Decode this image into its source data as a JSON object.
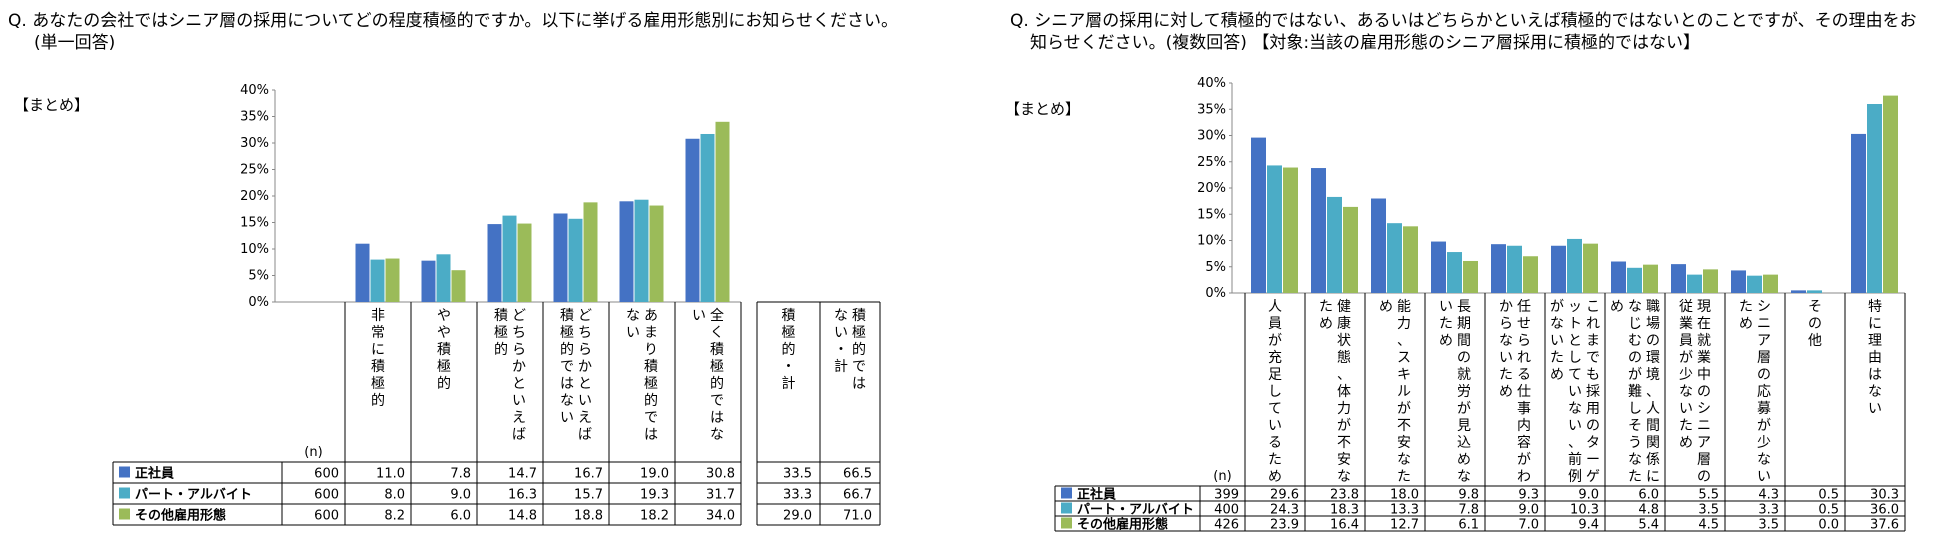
{
  "left": {
    "question_line1": "Q. あなたの会社ではシニア層の採用についてどの程度積極的ですか。以下に挙げる雇用形態別にお知らせください。",
    "question_line2": "(単一回答)",
    "matome": "【まとめ】",
    "n_label": "(n)"
  },
  "right": {
    "question_line1": "Q. シニア層の採用に対して積極的ではない、あるいはどちらかといえば積極的ではないとのことですが、その理由をお",
    "question_line2": "知らせください。(複数回答) 【対象:当該の雇用形態のシニア層採用に積極的ではない】",
    "matome": "【まとめ】",
    "n_label": "(n)"
  },
  "colors": {
    "seishain": "#4472C4",
    "part": "#4BACC6",
    "other": "#9BBB59"
  },
  "chart_data": [
    {
      "type": "bar",
      "ylim": [
        0,
        40
      ],
      "yticks": [
        "0%",
        "5%",
        "10%",
        "15%",
        "20%",
        "25%",
        "30%",
        "35%",
        "40%"
      ],
      "categories": [
        "非常に積極的",
        "やや積極的",
        "どちらかといえば積極的",
        "どちらかといえば積極的ではない",
        "あまり積極的ではない",
        "全く積極的ではない"
      ],
      "series": [
        {
          "name": "正社員",
          "n": "600",
          "values": [
            11.0,
            7.8,
            14.7,
            16.7,
            19.0,
            30.8
          ],
          "totals": [
            33.5,
            66.5
          ]
        },
        {
          "name": "パート・アルバイト",
          "n": "600",
          "values": [
            8.0,
            9.0,
            16.3,
            15.7,
            19.3,
            31.7
          ],
          "totals": [
            33.3,
            66.7
          ]
        },
        {
          "name": "その他雇用形態",
          "n": "600",
          "values": [
            8.2,
            6.0,
            14.8,
            18.8,
            18.2,
            34.0
          ],
          "totals": [
            29.0,
            71.0
          ]
        }
      ],
      "total_categories": [
        "積極的・計",
        "積極的ではない・計"
      ]
    },
    {
      "type": "bar",
      "ylim": [
        0,
        40
      ],
      "yticks": [
        "0%",
        "5%",
        "10%",
        "15%",
        "20%",
        "25%",
        "30%",
        "35%",
        "40%"
      ],
      "categories": [
        "人員が充足しているため",
        "健康状態、体力が不安なため",
        "能力、スキルが不安なため",
        "長期間の就労が見込めないため",
        "任せられる仕事内容がわからないため",
        "これまでも採用のターゲットとしていない、前例がないため",
        "職場の環境、人間関係になじむのが難しそうなため",
        "現在就業中のシニア層の従業員が少ないため",
        "シニア層の応募が少ないため",
        "その他",
        "特に理由はない"
      ],
      "series": [
        {
          "name": "正社員",
          "n": "399",
          "values": [
            29.6,
            23.8,
            18.0,
            9.8,
            9.3,
            9.0,
            6.0,
            5.5,
            4.3,
            0.5,
            30.3
          ]
        },
        {
          "name": "パート・アルバイト",
          "n": "400",
          "values": [
            24.3,
            18.3,
            13.3,
            7.8,
            9.0,
            10.3,
            4.8,
            3.5,
            3.3,
            0.5,
            36.0
          ]
        },
        {
          "name": "その他雇用形態",
          "n": "426",
          "values": [
            23.9,
            16.4,
            12.7,
            6.1,
            7.0,
            9.4,
            5.4,
            4.5,
            3.5,
            0.0,
            37.6
          ]
        }
      ]
    }
  ]
}
